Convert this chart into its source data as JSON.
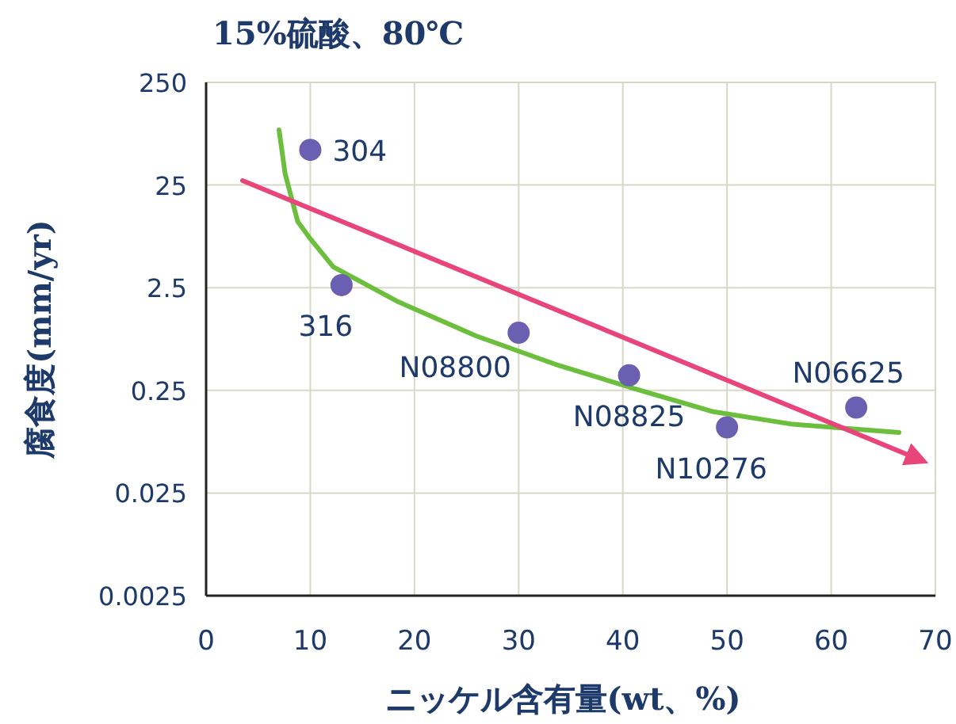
{
  "chart_data": {
    "type": "scatter",
    "title": "15%硫酸、80℃",
    "xlabel": "ニッケル含有量(wt、%)",
    "ylabel": "腐食度(mm/yr)",
    "log": "y",
    "grid": true,
    "marker": "circle",
    "xlim": [
      0,
      70
    ],
    "xticks": [
      0,
      10,
      20,
      30,
      40,
      50,
      60,
      70
    ],
    "ylim": [
      0.0025,
      250
    ],
    "yticks": [
      0.0025,
      0.025,
      0.25,
      2.5,
      25,
      250
    ],
    "series": [
      {
        "type": "line",
        "color": "#6cbf3c",
        "marker": "none",
        "x": [
          7,
          7.6,
          8.8,
          9.9,
          12.2,
          18.3,
          25.9,
          33.5,
          41.1,
          48.7,
          56.3,
          66.5
        ],
        "values": [
          86,
          32,
          11,
          7.7,
          4.0,
          1.85,
          0.85,
          0.45,
          0.26,
          0.155,
          0.117,
          0.097
        ]
      },
      {
        "type": "line",
        "color": "#e8457a",
        "marker": "none",
        "x": [
          3.5,
          68.5
        ],
        "values": [
          27.6,
          0.053
        ]
      },
      {
        "color": "#6a5fb0",
        "x": [
          10,
          13,
          30,
          40.6,
          50,
          62.4
        ],
        "values": [
          55,
          2.65,
          0.91,
          0.35,
          0.109,
          0.17
        ]
      }
    ],
    "annotations": [
      {
        "text": "304",
        "x": 10,
        "y": 55
      },
      {
        "text": "316",
        "x": 13,
        "y": 2.65
      },
      {
        "text": "N08800",
        "x": 30,
        "y": 0.91
      },
      {
        "text": "N08825",
        "x": 40.6,
        "y": 0.35
      },
      {
        "text": "N10276",
        "x": 50,
        "y": 0.109
      },
      {
        "text": "N06625",
        "x": 62.4,
        "y": 0.17
      }
    ]
  }
}
